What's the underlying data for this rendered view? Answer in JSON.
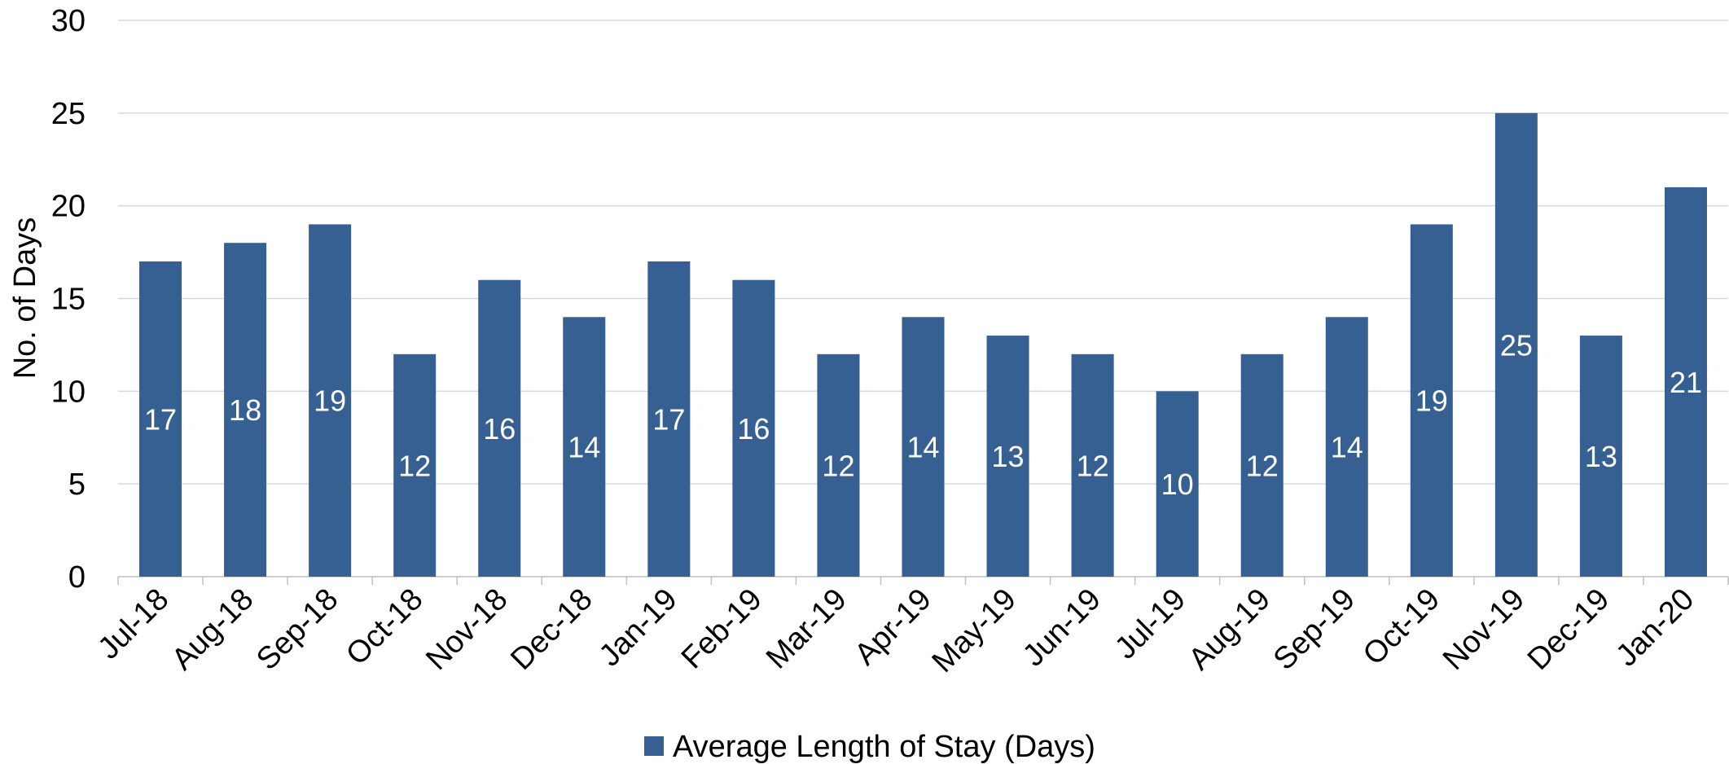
{
  "chart_data": {
    "type": "bar",
    "categories": [
      "Jul-18",
      "Aug-18",
      "Sep-18",
      "Oct-18",
      "Nov-18",
      "Dec-18",
      "Jan-19",
      "Feb-19",
      "Mar-19",
      "Apr-19",
      "May-19",
      "Jun-19",
      "Jul-19",
      "Aug-19",
      "Sep-19",
      "Oct-19",
      "Nov-19",
      "Dec-19",
      "Jan-20"
    ],
    "series": [
      {
        "name": "Average Length of Stay (Days)",
        "values": [
          17,
          18,
          19,
          12,
          16,
          14,
          17,
          16,
          12,
          14,
          13,
          12,
          10,
          12,
          14,
          19,
          25,
          13,
          21
        ],
        "color": "#376092"
      }
    ],
    "title": "",
    "xlabel": "",
    "ylabel": "No. of Days",
    "ylim": [
      0,
      30
    ],
    "yticks": [
      0,
      5,
      10,
      15,
      20,
      25,
      30
    ],
    "grid": true,
    "data_labels": true,
    "legend": "bottom-center",
    "colors": {
      "bar": "#376092",
      "grid": "#d9d9d9",
      "axis": "#bfbfbf",
      "label": "#ffffff"
    }
  }
}
